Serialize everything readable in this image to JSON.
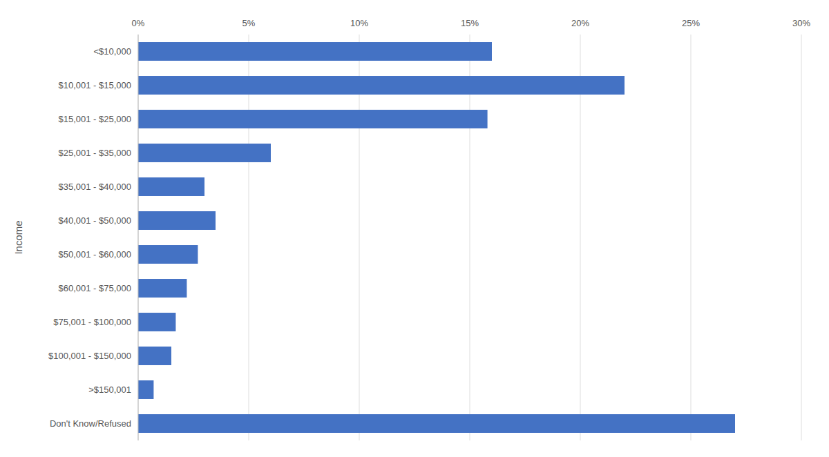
{
  "chart_data": {
    "type": "bar",
    "orientation": "horizontal",
    "categories": [
      "<$10,000",
      "$10,001 - $15,000",
      "$15,001 - $25,000",
      "$25,001 - $35,000",
      "$35,001 - $40,000",
      "$40,001 - $50,000",
      "$50,001 - $60,000",
      "$60,001 - $75,000",
      "$75,001 - $100,000",
      "$100,001 - $150,000",
      ">$150,001",
      "Don't Know/Refused"
    ],
    "values": [
      16.0,
      22.0,
      15.8,
      6.0,
      3.0,
      3.5,
      2.7,
      2.2,
      1.7,
      1.5,
      0.7,
      27.0
    ],
    "color": "#4472C4",
    "ylabel": "Income",
    "xlim": [
      0,
      30
    ],
    "xticks": [
      {
        "value": 0,
        "label": "0%"
      },
      {
        "value": 5,
        "label": "5%"
      },
      {
        "value": 10,
        "label": "10%"
      },
      {
        "value": 15,
        "label": "15%"
      },
      {
        "value": 20,
        "label": "20%"
      },
      {
        "value": 25,
        "label": "25%"
      },
      {
        "value": 30,
        "label": "30%"
      }
    ],
    "grid": true
  }
}
